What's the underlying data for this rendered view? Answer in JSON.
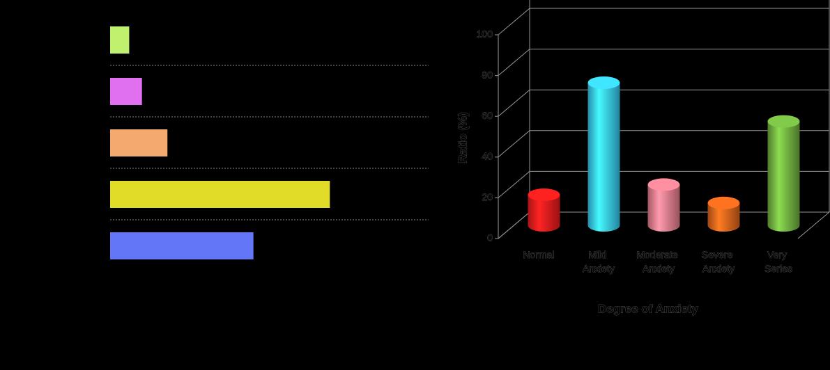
{
  "chart_data": [
    {
      "type": "hbar",
      "categories": [
        null,
        null,
        null,
        null,
        null
      ],
      "values": [
        6,
        10,
        18,
        69,
        45
      ],
      "colors": [
        "#bff06e",
        "#e070f0",
        "#f4aa6e",
        "#e0dc28",
        "#6476f8"
      ],
      "xlim": [
        0,
        100
      ]
    },
    {
      "type": "bar3d",
      "categories": [
        "Normal",
        "Mild Anxiety",
        "Moderate Anxiety",
        "Severe Anxiety",
        "Very Series"
      ],
      "values": [
        15,
        70,
        20,
        11,
        51
      ],
      "colors": [
        "#ee1c1c",
        "#38c8f4",
        "#ec7c8c",
        "#e0641c",
        "#70b040"
      ],
      "ylim": [
        0,
        100
      ],
      "yticks": [
        0,
        20,
        40,
        60,
        80,
        100
      ],
      "grid": true,
      "ylabel": "Ratio (%)",
      "xlabel": "Degree of Anxiety"
    }
  ]
}
